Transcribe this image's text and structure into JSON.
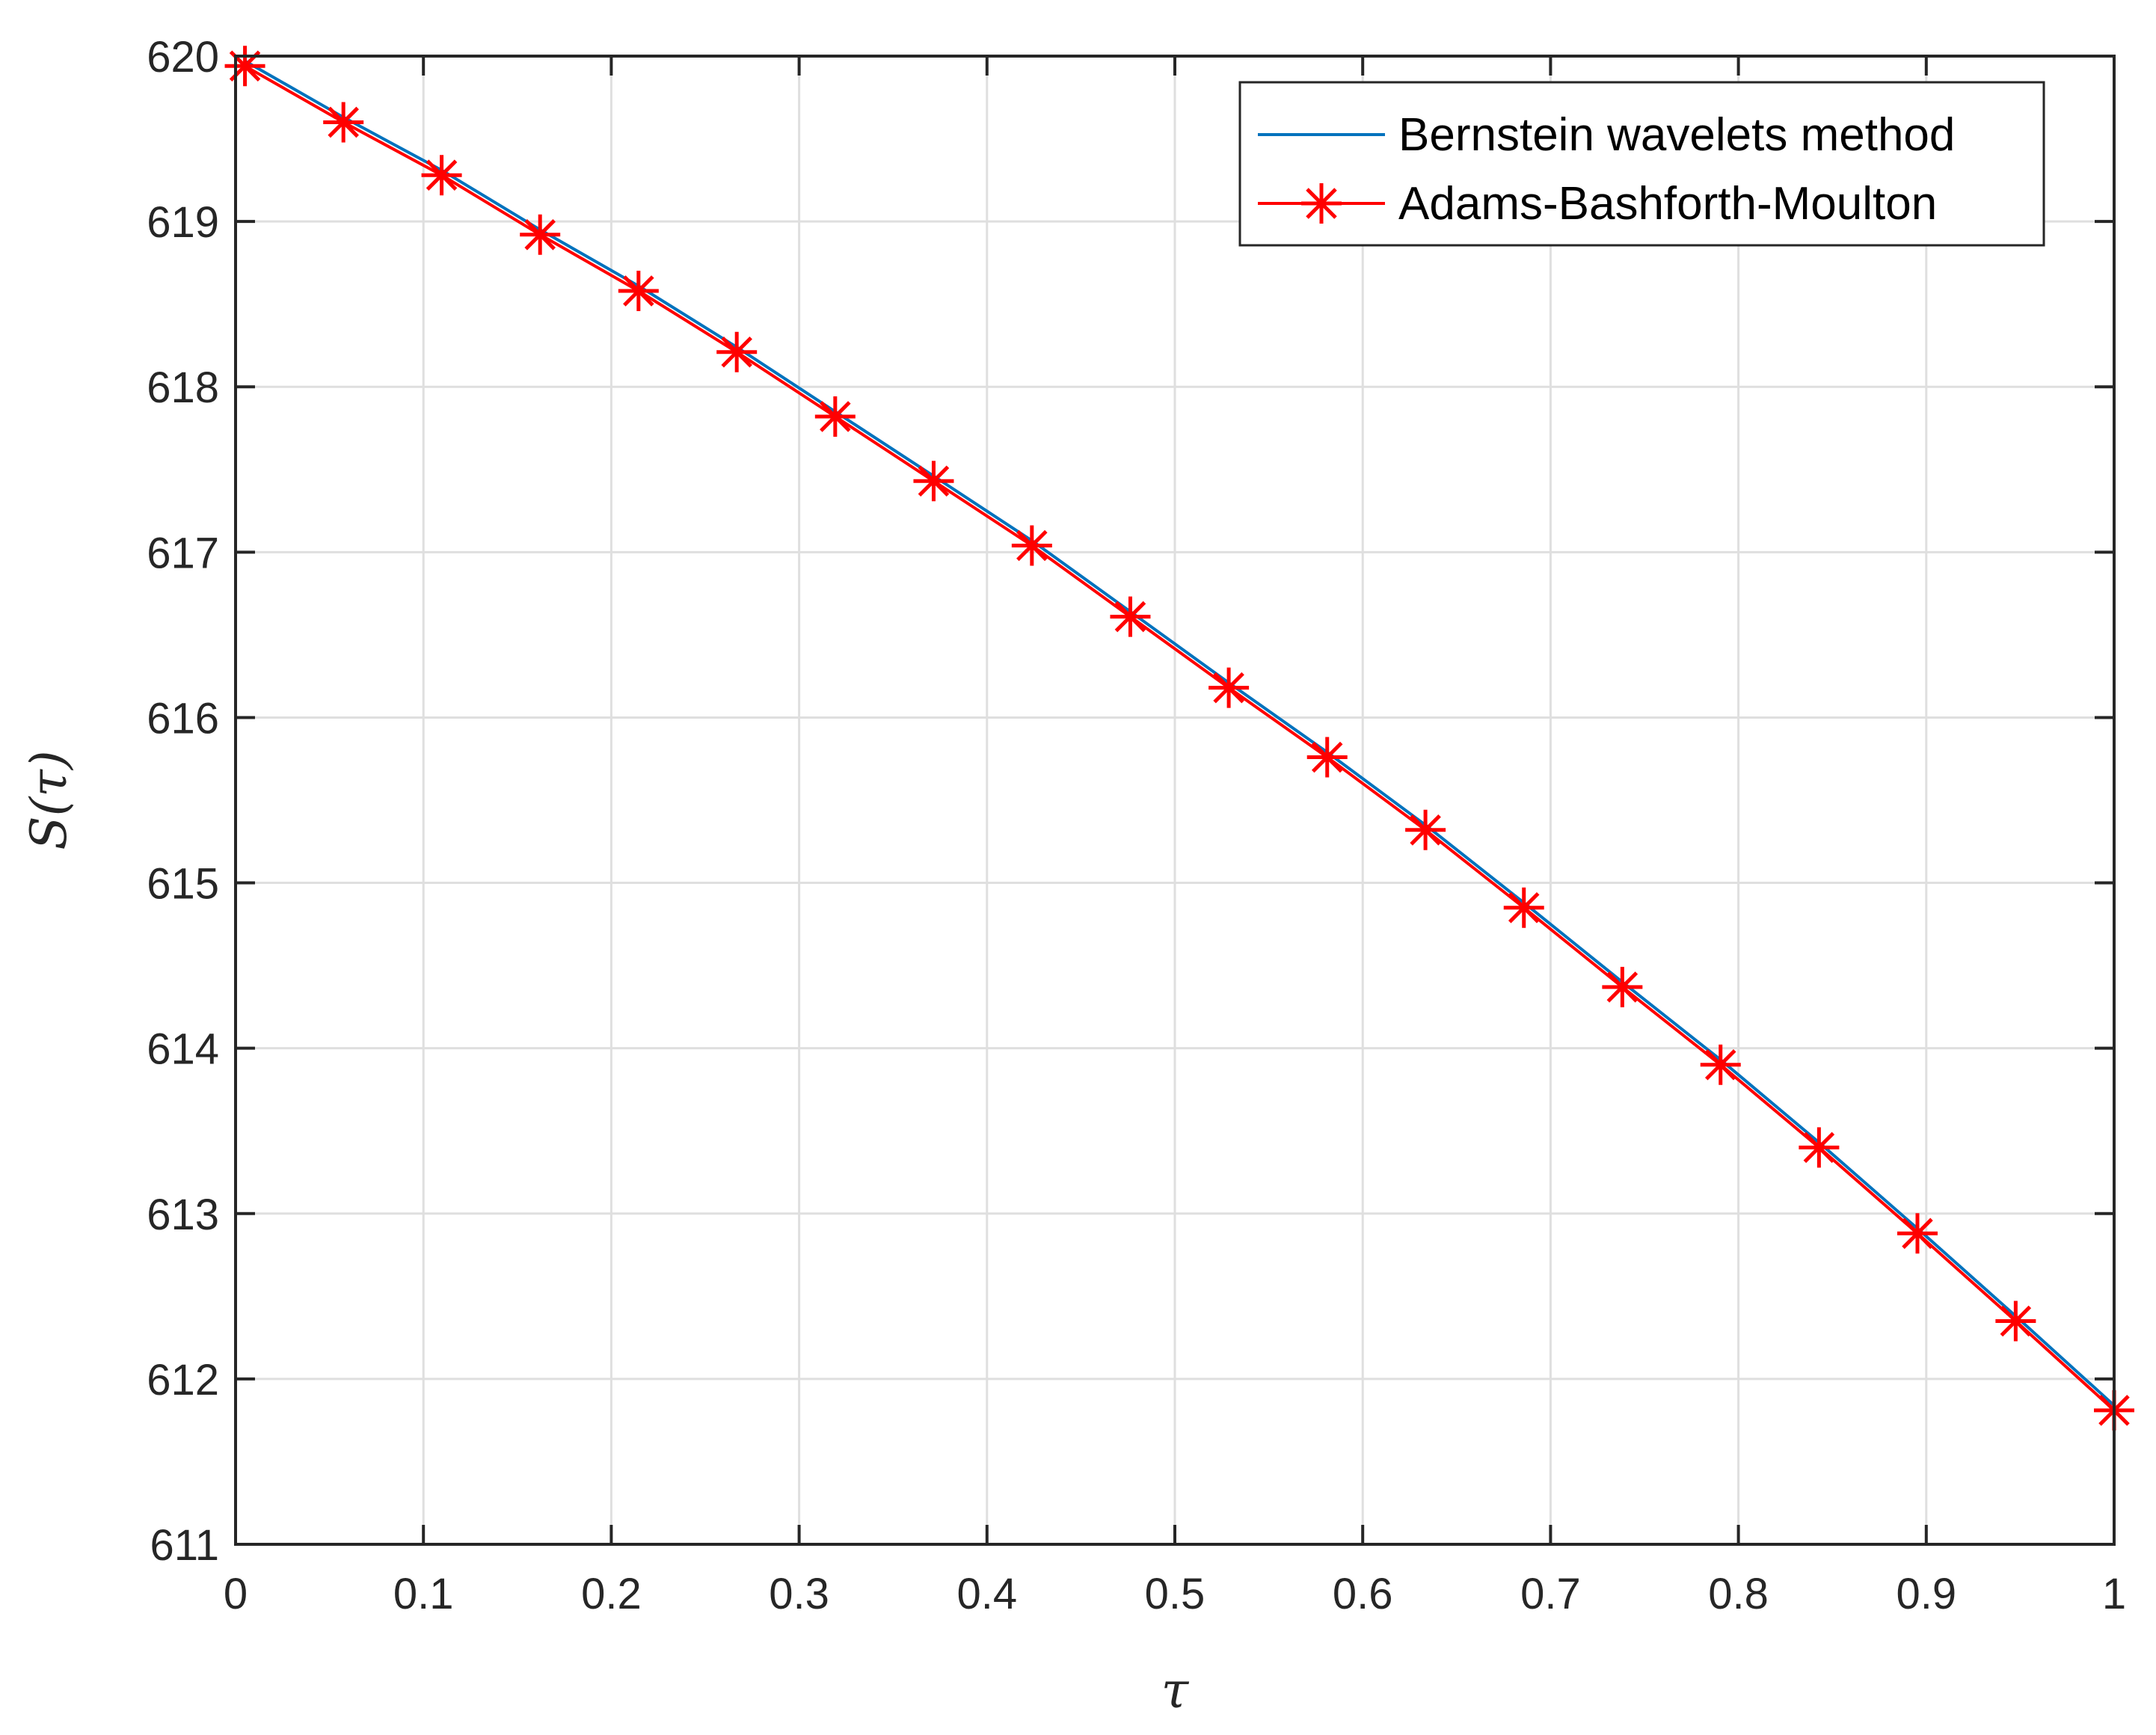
{
  "chart_data": {
    "type": "line",
    "title": "",
    "xlabel": "τ",
    "ylabel": "S(τ)",
    "xlim": [
      0,
      1
    ],
    "ylim": [
      611,
      620
    ],
    "grid": true,
    "legend_position": "top-right",
    "xticks": [
      "0",
      "0.1",
      "0.2",
      "0.3",
      "0.4",
      "0.5",
      "0.6",
      "0.7",
      "0.8",
      "0.9",
      "1"
    ],
    "yticks": [
      "611",
      "612",
      "613",
      "614",
      "615",
      "616",
      "617",
      "618",
      "619",
      "620"
    ],
    "series": [
      {
        "name": "Bernstein wavelets method",
        "color": "#0072BD",
        "marker": "none",
        "x": [
          0.005,
          0.0574,
          0.1097,
          0.1621,
          0.2145,
          0.2668,
          0.3192,
          0.3716,
          0.4239,
          0.4763,
          0.5287,
          0.5811,
          0.6334,
          0.6858,
          0.7382,
          0.7905,
          0.8429,
          0.8953,
          0.9476,
          1.0
        ],
        "y": [
          619.97,
          619.63,
          619.31,
          618.95,
          618.61,
          618.24,
          617.85,
          617.46,
          617.07,
          616.64,
          616.21,
          615.79,
          615.35,
          614.88,
          614.4,
          613.93,
          613.43,
          612.91,
          612.38,
          611.84
        ]
      },
      {
        "name": "Adams-Bashforth-Moulton",
        "color": "#FF0000",
        "marker": "asterisk",
        "x": [
          0.005,
          0.0574,
          0.1097,
          0.1621,
          0.2145,
          0.2668,
          0.3192,
          0.3716,
          0.4239,
          0.4763,
          0.5287,
          0.5811,
          0.6334,
          0.6858,
          0.7382,
          0.7905,
          0.8429,
          0.8953,
          0.9476,
          1.0
        ],
        "y": [
          619.94,
          619.6,
          619.28,
          618.92,
          618.58,
          618.21,
          617.82,
          617.43,
          617.04,
          616.61,
          616.18,
          615.76,
          615.32,
          614.85,
          614.37,
          613.9,
          613.4,
          612.88,
          612.35,
          611.81
        ]
      }
    ]
  }
}
